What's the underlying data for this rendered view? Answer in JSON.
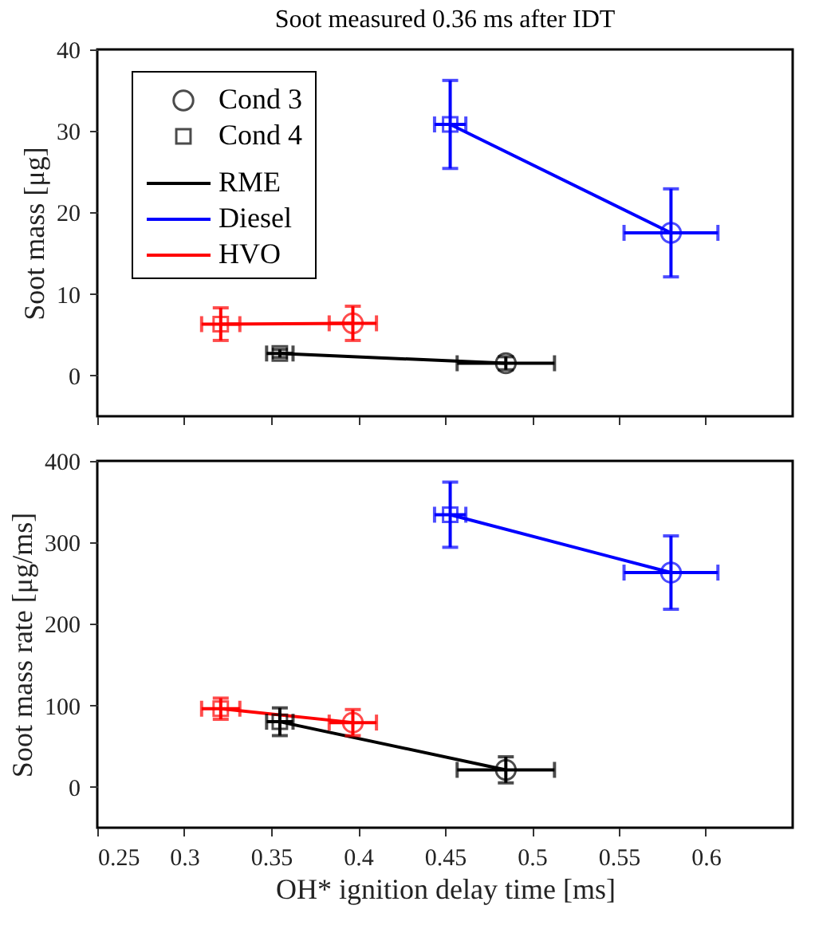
{
  "chart_data": [
    {
      "type": "line",
      "title": "Soot measured 0.36 ms after IDT",
      "ylabel": "Soot mass [μg]",
      "xlim": [
        0.25,
        0.65
      ],
      "xticks": [
        0.25,
        0.3,
        0.35,
        0.4,
        0.45,
        0.5,
        0.55,
        0.6
      ],
      "ylim": [
        -5,
        40
      ],
      "yticks": [
        0,
        10,
        20,
        30,
        40
      ],
      "tick_labels": "y",
      "legend": "top left",
      "grid": false,
      "line_style": "solid",
      "series": [
        {
          "name": "Cond 3",
          "type": "scatter",
          "marker": "circle",
          "color": "#000000",
          "x": [
            0.485,
            0.58,
            0.397
          ],
          "values": [
            1.5,
            17.5,
            6.4
          ],
          "colors": [
            "#000000",
            "#0000ff",
            "#ff0000"
          ],
          "errors": [
            0.8,
            5.4,
            2.1
          ],
          "xerrors": [
            0.028,
            0.027,
            0.0136
          ]
        },
        {
          "name": "Cond 4",
          "type": "scatter",
          "marker": "square",
          "color": "#000000",
          "x": [
            0.355,
            0.453,
            0.321
          ],
          "values": [
            2.7,
            30.8,
            6.3
          ],
          "colors": [
            "#000000",
            "#0000ff",
            "#ff0000"
          ],
          "errors": [
            0.5,
            5.4,
            2
          ],
          "xerrors": [
            0.0076,
            0.009,
            0.011
          ]
        },
        {
          "name": "RME",
          "color": "#000000",
          "x": [
            0.355,
            0.485
          ],
          "values": [
            2.7,
            1.5
          ]
        },
        {
          "name": "Diesel",
          "color": "#0000ff",
          "x": [
            0.453,
            0.58
          ],
          "values": [
            30.8,
            17.5
          ]
        },
        {
          "name": "HVO",
          "color": "#ff0000",
          "x": [
            0.321,
            0.397
          ],
          "values": [
            6.3,
            6.4
          ]
        }
      ]
    },
    {
      "type": "line",
      "xlabel": "OH* ignition delay time [ms]",
      "ylabel": "Soot mass rate [μg/ms]",
      "xlim": [
        0.25,
        0.65
      ],
      "xticks": [
        0.25,
        0.3,
        0.35,
        0.4,
        0.45,
        0.5,
        0.55,
        0.6
      ],
      "ylim": [
        -50,
        400
      ],
      "yticks": [
        0,
        100,
        200,
        300,
        400
      ],
      "grid": false,
      "line_style": "solid",
      "series": [
        {
          "type": "scatter",
          "marker": "circle",
          "color": "#000000",
          "x": [
            0.485,
            0.58,
            0.397
          ],
          "values": [
            21,
            263,
            79
          ],
          "colors": [
            "#000000",
            "#0000ff",
            "#ff0000"
          ],
          "errors": [
            16,
            45,
            16
          ],
          "xerrors": [
            0.028,
            0.027,
            0.0136
          ]
        },
        {
          "type": "scatter",
          "marker": "square",
          "color": "#000000",
          "x": [
            0.355,
            0.453,
            0.321
          ],
          "values": [
            80,
            334,
            96
          ],
          "colors": [
            "#000000",
            "#0000ff",
            "#ff0000"
          ],
          "errors": [
            17,
            40,
            13
          ],
          "xerrors": [
            0.0076,
            0.009,
            0.011
          ]
        },
        {
          "color": "#000000",
          "x": [
            0.355,
            0.485
          ],
          "values": [
            80,
            21
          ]
        },
        {
          "color": "#0000ff",
          "x": [
            0.453,
            0.58
          ],
          "values": [
            334,
            263
          ]
        },
        {
          "color": "#ff0000",
          "x": [
            0.321,
            0.397
          ],
          "values": [
            96,
            79
          ]
        }
      ]
    }
  ]
}
